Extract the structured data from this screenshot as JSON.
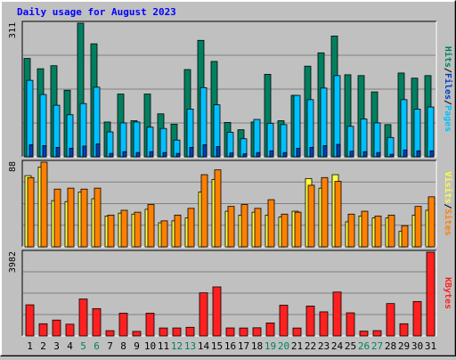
{
  "title": "Daily usage for August 2023",
  "colors": {
    "background": "#c0c0c0",
    "plot_bg": "#c0c0c0",
    "title": "#0000ff",
    "hits": "#008060",
    "files": "#00c0ff",
    "pages": "#0040c0",
    "visits": "#ff8000",
    "sites": "#ffff40",
    "kbytes": "#ff2020",
    "weekend_day": "#008060",
    "weekday": "#000000"
  },
  "chart_data": [
    {
      "type": "bar",
      "title": "Daily usage for August 2023",
      "categories": [
        "1",
        "2",
        "3",
        "4",
        "5",
        "6",
        "7",
        "8",
        "9",
        "10",
        "11",
        "12",
        "13",
        "14",
        "15",
        "16",
        "17",
        "18",
        "19",
        "20",
        "21",
        "22",
        "23",
        "24",
        "25",
        "26",
        "27",
        "28",
        "29",
        "30",
        "31"
      ],
      "weekend_days": [
        "5",
        "6",
        "12",
        "13",
        "19",
        "20",
        "26",
        "27"
      ],
      "ymax_label": "311",
      "ylim": [
        0,
        311
      ],
      "ylabel_parts": [
        "Pages",
        "Files",
        "Hits"
      ],
      "ylabel_sep": " / ",
      "series": [
        {
          "name": "Hits",
          "values": [
            229,
            205,
            212,
            155,
            311,
            263,
            81,
            146,
            84,
            146,
            100,
            76,
            203,
            271,
            222,
            80,
            63,
            81,
            192,
            84,
            143,
            211,
            242,
            281,
            191,
            189,
            151,
            75,
            195,
            183,
            189
          ]
        },
        {
          "name": "Files",
          "values": [
            178,
            145,
            120,
            98,
            124,
            162,
            58,
            79,
            81,
            69,
            66,
            39,
            111,
            161,
            121,
            57,
            42,
            87,
            78,
            75,
            143,
            133,
            160,
            189,
            71,
            88,
            79,
            45,
            133,
            111,
            116
          ]
        },
        {
          "name": "Pages",
          "values": [
            28,
            26,
            22,
            20,
            25,
            30,
            8,
            12,
            10,
            12,
            10,
            8,
            22,
            28,
            24,
            9,
            7,
            10,
            14,
            10,
            20,
            22,
            26,
            29,
            13,
            12,
            10,
            6,
            16,
            14,
            14
          ]
        }
      ]
    },
    {
      "type": "bar",
      "categories": [
        "1",
        "2",
        "3",
        "4",
        "5",
        "6",
        "7",
        "8",
        "9",
        "10",
        "11",
        "12",
        "13",
        "14",
        "15",
        "16",
        "17",
        "18",
        "19",
        "20",
        "21",
        "22",
        "23",
        "24",
        "25",
        "26",
        "27",
        "28",
        "29",
        "30",
        "31"
      ],
      "ymax_label": "88",
      "ylim": [
        0,
        88
      ],
      "ylabel_parts": [
        "Sites",
        "Visits"
      ],
      "ylabel_sep": " / ",
      "series": [
        {
          "name": "Visits",
          "values": [
            72,
            88,
            60,
            61,
            60,
            61,
            33,
            38,
            36,
            44,
            27,
            33,
            40,
            75,
            80,
            42,
            44,
            40,
            49,
            34,
            36,
            64,
            72,
            68,
            34,
            37,
            32,
            33,
            22,
            42,
            52
          ]
        },
        {
          "name": "Sites",
          "values": [
            74,
            83,
            48,
            47,
            57,
            50,
            32,
            35,
            34,
            39,
            25,
            27,
            30,
            57,
            70,
            37,
            33,
            36,
            33,
            31,
            37,
            71,
            61,
            75,
            26,
            32,
            30,
            30,
            16,
            33,
            38
          ]
        }
      ]
    },
    {
      "type": "bar",
      "categories": [
        "1",
        "2",
        "3",
        "4",
        "5",
        "6",
        "7",
        "8",
        "9",
        "10",
        "11",
        "12",
        "13",
        "14",
        "15",
        "16",
        "17",
        "18",
        "19",
        "20",
        "21",
        "22",
        "23",
        "24",
        "25",
        "26",
        "27",
        "28",
        "29",
        "30",
        "31"
      ],
      "ymax_label": "3982",
      "ylim": [
        0,
        3982
      ],
      "ylabel_parts": [
        "KBytes"
      ],
      "series": [
        {
          "name": "KBytes",
          "values": [
            1480,
            581,
            754,
            558,
            1755,
            1299,
            251,
            1080,
            216,
            1082,
            378,
            379,
            412,
            2050,
            2331,
            380,
            377,
            388,
            618,
            1461,
            376,
            1421,
            1147,
            2087,
            1100,
            228,
            252,
            1539,
            580,
            1637,
            3982
          ]
        }
      ]
    }
  ]
}
